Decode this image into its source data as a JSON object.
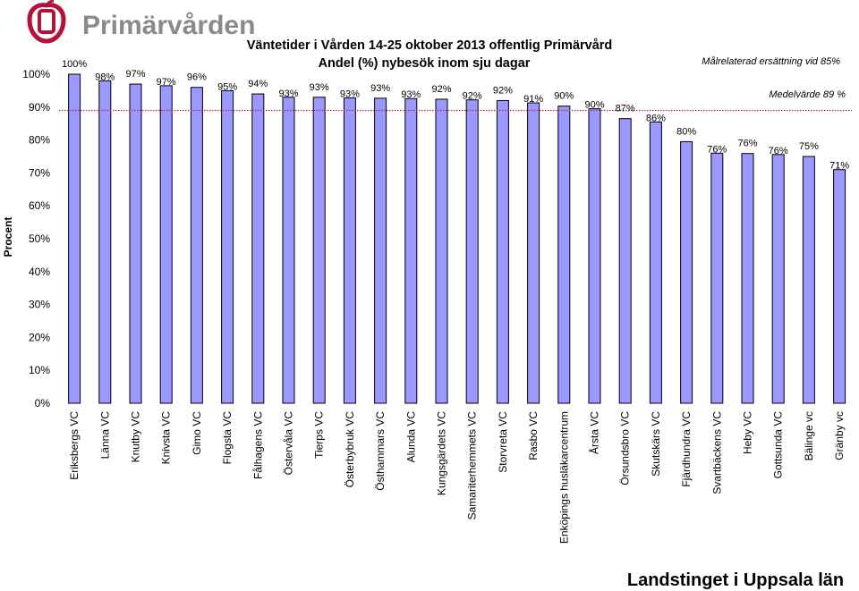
{
  "brand": {
    "name": "Primärvården",
    "color": "#b5123a",
    "text_color": "#8a8a8a"
  },
  "footer": {
    "text": "Landstinget i Uppsala län"
  },
  "chart_data": {
    "type": "bar",
    "title_line1": "Väntetider i Vården 14-25 oktober 2013 offentlig Primärvård",
    "title_line2": "Andel (%) nybesök inom sju dagar",
    "ylabel": "Procent",
    "xlabel": "",
    "ylim": [
      0,
      100
    ],
    "yticks": [
      "0%",
      "10%",
      "20%",
      "30%",
      "40%",
      "50%",
      "60%",
      "70%",
      "80%",
      "90%",
      "100%"
    ],
    "grid": false,
    "categories": [
      "Eriksbergs VC",
      "Länna VC",
      "Knutby VC",
      "Knivsta VC",
      "Gimo VC",
      "Flogsta VC",
      "Fålhagens VC",
      "Östervåla VC",
      "Tierps VC",
      "Österbybruk VC",
      "Östhammars VC",
      "Alunda VC",
      "Kungsgärdets VC",
      "Samariterhemmets VC",
      "Storvreta VC",
      "Rasbo VC",
      "Enköpings husläkarcentrum",
      "Årsta VC",
      "Örsundsbro VC",
      "Skutskärs VC",
      "Fjärdhundra VC",
      "Svartbäckens VC",
      "Heby VC",
      "Gottsunda VC",
      "Bälinge vc",
      "Gränby vc"
    ],
    "values": [
      100,
      98,
      97,
      96.5,
      96,
      95,
      94,
      93,
      93,
      92.8,
      92.7,
      92.6,
      92.4,
      92.2,
      92,
      91.3,
      90.3,
      89.5,
      86.5,
      85.5,
      79.5,
      76,
      75.9,
      75.6,
      75,
      71
    ],
    "data_labels": [
      "100%",
      "98%",
      "97%",
      "97%",
      "96%",
      "95%",
      "94%",
      "93%",
      "93%",
      "93%",
      "93%",
      "93%",
      "92%",
      "92%",
      "92%",
      "91%",
      "90%",
      "90%",
      "87%",
      "86%",
      "80%",
      "76%",
      "76%",
      "76%",
      "75%",
      "71%"
    ],
    "bar_color": "#9999ff",
    "reference_lines": [
      {
        "label": "Målrelaterad ersättning vid 85%",
        "value": 85,
        "color": "#b0304a",
        "shown": false
      },
      {
        "label": "Medelvärde 89 %",
        "value": 89,
        "color": "#b0304a",
        "style": "dotted"
      }
    ]
  }
}
